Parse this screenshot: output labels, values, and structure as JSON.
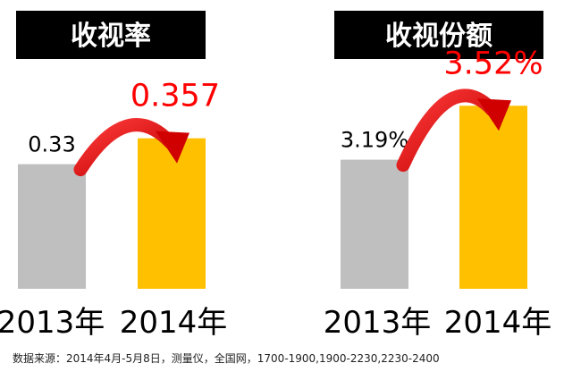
{
  "chart_data": [
    {
      "type": "bar",
      "title": "收视率",
      "categories": [
        "2013年",
        "2014年"
      ],
      "values": [
        0.33,
        0.357
      ],
      "value_labels": [
        "0.33",
        "0.357"
      ],
      "ylim": [
        0.2,
        0.38
      ],
      "colors": [
        "#bfbfbf",
        "#ffc000"
      ],
      "highlight_color": "#ff0000",
      "grid": false
    },
    {
      "type": "bar",
      "title": "收视份额",
      "categories": [
        "2013年",
        "2014年"
      ],
      "values": [
        3.19,
        3.52
      ],
      "value_labels": [
        "3.19%",
        "3.52%"
      ],
      "ylim": [
        2.4,
        3.62
      ],
      "colors": [
        "#bfbfbf",
        "#ffc000"
      ],
      "highlight_color": "#ff0000",
      "grid": false
    }
  ],
  "footnote": "数据来源：2014年4月-5月8日，测量仪，全国网，1700-1900,1900-2230,2230-2400"
}
